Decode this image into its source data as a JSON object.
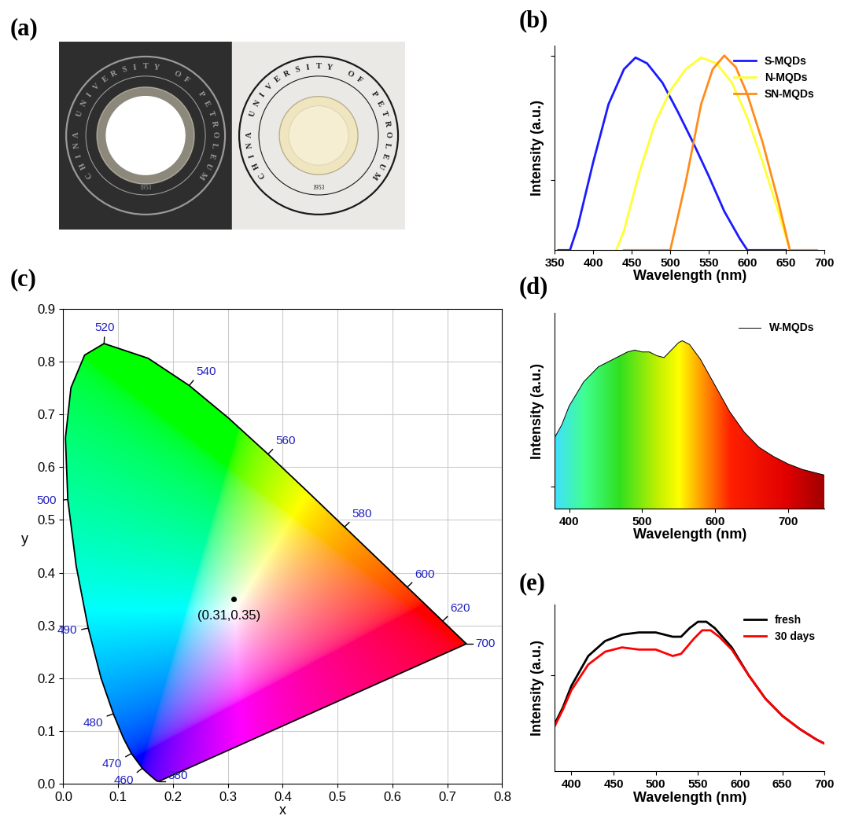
{
  "photo": {
    "label": "(a)",
    "seal_text": "CHINA UNIVERSITY OF PETROLEUM",
    "year": "1953"
  },
  "chart_data": [
    {
      "label": "(b)",
      "type": "line",
      "xlabel": "Wavelength (nm)",
      "ylabel": "Intensity (a.u.)",
      "xlim": [
        350,
        700
      ],
      "xticks": [
        350,
        400,
        450,
        500,
        550,
        600,
        650,
        700
      ],
      "ylim": [
        0,
        1.05
      ],
      "yticks": [
        0.36,
        1.0
      ],
      "tick_labels": "x",
      "legend": "upper right",
      "series": [
        {
          "name": "S-MQDs",
          "color": "#1a1aff",
          "x": [
            355,
            370,
            380,
            400,
            420,
            440,
            455,
            470,
            490,
            510,
            530,
            550,
            570,
            590,
            600,
            650
          ],
          "values": [
            0,
            0,
            0.12,
            0.45,
            0.75,
            0.93,
            0.99,
            0.96,
            0.86,
            0.71,
            0.55,
            0.38,
            0.2,
            0.06,
            0,
            0
          ]
        },
        {
          "name": "N-MQDs",
          "color": "#ffff33",
          "x": [
            430,
            440,
            460,
            480,
            500,
            520,
            540,
            560,
            580,
            600,
            620,
            640,
            655
          ],
          "values": [
            0,
            0.1,
            0.4,
            0.65,
            0.82,
            0.93,
            0.99,
            0.96,
            0.86,
            0.68,
            0.45,
            0.2,
            0
          ]
        },
        {
          "name": "SN-MQDs",
          "color": "#ff8c1a",
          "x": [
            440,
            500,
            520,
            540,
            555,
            570,
            585,
            600,
            620,
            640,
            655,
            690
          ],
          "values": [
            0,
            0,
            0.35,
            0.75,
            0.93,
            1.0,
            0.94,
            0.8,
            0.55,
            0.25,
            0,
            0
          ]
        }
      ]
    },
    {
      "label": "(c)",
      "type": "chromaticity",
      "xlabel": "x",
      "ylabel": "y",
      "xlim": [
        0.0,
        0.8
      ],
      "xticks": [
        0.0,
        0.1,
        0.2,
        0.3,
        0.4,
        0.5,
        0.6,
        0.7,
        0.8
      ],
      "ylim": [
        0.0,
        0.9
      ],
      "yticks": [
        0.0,
        0.1,
        0.2,
        0.3,
        0.4,
        0.5,
        0.6,
        0.7,
        0.8,
        0.9
      ],
      "grid": true,
      "locus": {
        "wavelength": [
          380,
          420,
          430,
          440,
          450,
          460,
          470,
          475,
          480,
          485,
          490,
          495,
          500,
          505,
          510,
          515,
          520,
          530,
          540,
          550,
          560,
          570,
          580,
          590,
          600,
          610,
          620,
          630,
          640,
          650,
          700
        ],
        "x": [
          0.1741,
          0.1714,
          0.1689,
          0.1644,
          0.1566,
          0.144,
          0.1241,
          0.1096,
          0.0913,
          0.0687,
          0.0454,
          0.0235,
          0.0082,
          0.0039,
          0.0139,
          0.0389,
          0.0743,
          0.1547,
          0.2296,
          0.3016,
          0.3731,
          0.4441,
          0.5125,
          0.5752,
          0.627,
          0.6658,
          0.6915,
          0.7079,
          0.719,
          0.726,
          0.7347
        ],
        "y": [
          0.005,
          0.0051,
          0.0069,
          0.0109,
          0.0177,
          0.0297,
          0.0578,
          0.0868,
          0.1327,
          0.2007,
          0.295,
          0.4127,
          0.5384,
          0.6548,
          0.7502,
          0.812,
          0.8338,
          0.8059,
          0.7543,
          0.6923,
          0.6245,
          0.5547,
          0.4866,
          0.4242,
          0.3725,
          0.334,
          0.3083,
          0.292,
          0.2809,
          0.274,
          0.2653
        ]
      },
      "labeled_wavelengths": [
        380,
        460,
        470,
        480,
        490,
        500,
        520,
        540,
        560,
        580,
        600,
        620,
        700
      ],
      "point": {
        "x": 0.31,
        "y": 0.35,
        "label": "(0.31,0.35)"
      }
    },
    {
      "label": "(d)",
      "type": "area",
      "xlabel": "Wavelength (nm)",
      "ylabel": "Intensity (a.u.)",
      "xlim": [
        380,
        750
      ],
      "xticks": [
        400,
        500,
        600,
        700
      ],
      "ylim": [
        0,
        1.05
      ],
      "yticks": [
        0.12
      ],
      "tick_labels": "x",
      "legend": "upper right",
      "series": [
        {
          "name": "W-MQDs",
          "color": "#000000",
          "x": [
            380,
            390,
            400,
            420,
            440,
            460,
            480,
            490,
            500,
            510,
            520,
            530,
            540,
            550,
            555,
            565,
            580,
            600,
            620,
            640,
            660,
            680,
            700,
            720,
            750
          ],
          "values": [
            0.38,
            0.45,
            0.55,
            0.68,
            0.76,
            0.8,
            0.84,
            0.85,
            0.84,
            0.84,
            0.82,
            0.81,
            0.85,
            0.89,
            0.9,
            0.88,
            0.8,
            0.66,
            0.52,
            0.41,
            0.33,
            0.28,
            0.24,
            0.21,
            0.18
          ]
        }
      ]
    },
    {
      "label": "(e)",
      "type": "line",
      "xlabel": "Wavelength (nm)",
      "ylabel": "Intensity (a.u.)",
      "xlim": [
        380,
        700
      ],
      "xticks": [
        400,
        450,
        500,
        550,
        600,
        650,
        700
      ],
      "ylim": [
        0.1,
        0.88
      ],
      "yticks": [
        0.55
      ],
      "tick_labels": "x",
      "legend": "upper right",
      "series": [
        {
          "name": "fresh",
          "color": "#000000",
          "x": [
            380,
            390,
            400,
            420,
            440,
            460,
            480,
            500,
            520,
            530,
            540,
            550,
            560,
            570,
            590,
            610,
            630,
            650,
            670,
            690,
            700
          ],
          "values": [
            0.32,
            0.4,
            0.5,
            0.64,
            0.71,
            0.74,
            0.75,
            0.75,
            0.73,
            0.73,
            0.77,
            0.8,
            0.8,
            0.77,
            0.68,
            0.55,
            0.44,
            0.36,
            0.3,
            0.25,
            0.23
          ]
        },
        {
          "name": "30 days",
          "color": "#ff0000",
          "x": [
            380,
            390,
            400,
            420,
            440,
            460,
            480,
            500,
            520,
            530,
            545,
            555,
            565,
            575,
            590,
            610,
            630,
            650,
            670,
            690,
            700
          ],
          "values": [
            0.31,
            0.39,
            0.48,
            0.6,
            0.66,
            0.68,
            0.67,
            0.67,
            0.64,
            0.65,
            0.72,
            0.76,
            0.76,
            0.73,
            0.67,
            0.55,
            0.44,
            0.36,
            0.3,
            0.25,
            0.23
          ]
        }
      ]
    }
  ]
}
